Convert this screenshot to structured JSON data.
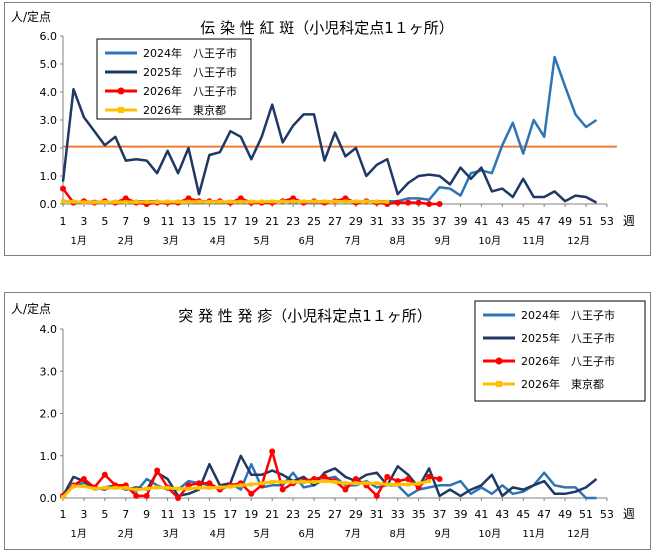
{
  "charts": [
    {
      "title": "伝 染 性 紅 斑（小児科定点1１ヶ所）",
      "ylabel": "人/定点",
      "xlabel_suffix": "週",
      "ylim": [
        0,
        6
      ],
      "yticks": [
        "0.0",
        "1.0",
        "2.0",
        "3.0",
        "4.0",
        "5.0",
        "6.0"
      ],
      "xticks": [
        "1",
        "3",
        "5",
        "7",
        "9",
        "11",
        "13",
        "15",
        "17",
        "19",
        "21",
        "23",
        "25",
        "27",
        "29",
        "31",
        "33",
        "35",
        "37",
        "39",
        "41",
        "43",
        "45",
        "47",
        "49",
        "51",
        "53"
      ],
      "months": [
        "1月",
        "2月",
        "3月",
        "4月",
        "5月",
        "6月",
        "7月",
        "8月",
        "9月",
        "10月",
        "11月",
        "12月"
      ],
      "legend": [
        {
          "label": "2024年　八王子市",
          "color": "#2e75b6"
        },
        {
          "label": "2025年　八王子市",
          "color": "#1f3864"
        },
        {
          "label": "2026年　八王子市",
          "color": "#ff0000"
        },
        {
          "label": "2026年　東京都",
          "color": "#ffc000"
        }
      ],
      "reference_line": {
        "value": 2.05,
        "color": "#ed7d31"
      }
    },
    {
      "title": "突 発 性 発 疹（小児科定点1１ヶ所）",
      "ylabel": "人/定点",
      "xlabel_suffix": "週",
      "ylim": [
        0,
        4
      ],
      "yticks": [
        "0.0",
        "1.0",
        "2.0",
        "3.0",
        "4.0"
      ],
      "xticks": [
        "1",
        "3",
        "5",
        "7",
        "9",
        "11",
        "13",
        "15",
        "17",
        "19",
        "21",
        "23",
        "25",
        "27",
        "29",
        "31",
        "33",
        "35",
        "37",
        "39",
        "41",
        "43",
        "45",
        "47",
        "49",
        "51",
        "53"
      ],
      "months": [
        "1月",
        "2月",
        "3月",
        "4月",
        "5月",
        "6月",
        "7月",
        "8月",
        "9月",
        "10月",
        "11月",
        "12月"
      ],
      "legend": [
        {
          "label": "2024年　八王子市",
          "color": "#2e75b6"
        },
        {
          "label": "2025年　八王子市",
          "color": "#1f3864"
        },
        {
          "label": "2026年　八王子市",
          "color": "#ff0000"
        },
        {
          "label": "2026年　東京都",
          "color": "#ffc000"
        }
      ]
    }
  ],
  "chart_data": [
    {
      "type": "line",
      "title": "伝 染 性 紅 斑（小児科定点1１ヶ所）",
      "ylabel": "人/定点",
      "ylim": [
        0,
        6
      ],
      "x_start": 1,
      "series": [
        {
          "name": "2024年　八王子市",
          "color": "#2e75b6",
          "values": [
            0.1,
            0.1,
            0.05,
            0.1,
            0.05,
            0.1,
            0.05,
            0.1,
            0.1,
            0.1,
            0.05,
            0.1,
            0.1,
            0.05,
            0.1,
            0.05,
            0.1,
            0.05,
            0.1,
            0.05,
            0.1,
            0.1,
            0.05,
            0.1,
            0.05,
            0.1,
            0.1,
            0.1,
            0.05,
            0.1,
            0.1,
            0.1,
            0.1,
            0.2,
            0.2,
            0.15,
            0.6,
            0.55,
            0.3,
            1.1,
            1.2,
            1.1,
            2.1,
            2.9,
            1.8,
            3.0,
            2.4,
            5.25,
            4.2,
            3.2,
            2.75,
            3.0
          ]
        },
        {
          "name": "2025年　八王子市",
          "color": "#1f3864",
          "values": [
            0.8,
            4.1,
            3.1,
            2.6,
            2.1,
            2.4,
            1.55,
            1.6,
            1.55,
            1.1,
            1.9,
            1.1,
            2.0,
            0.35,
            1.75,
            1.85,
            2.6,
            2.4,
            1.6,
            2.4,
            3.55,
            2.2,
            2.8,
            3.2,
            3.2,
            1.55,
            2.55,
            1.7,
            2.0,
            1.0,
            1.4,
            1.6,
            0.35,
            0.75,
            1.0,
            1.05,
            1.0,
            0.7,
            1.3,
            0.9,
            1.3,
            0.45,
            0.55,
            0.25,
            0.9,
            0.25,
            0.25,
            0.45,
            0.1,
            0.3,
            0.25,
            0.05
          ]
        },
        {
          "name": "2026年　八王子市",
          "color": "#ff0000",
          "values": [
            0.55,
            0.05,
            0.1,
            0.05,
            0.1,
            0.05,
            0.2,
            0.05,
            0.0,
            0.05,
            0.05,
            0.05,
            0.2,
            0.1,
            0.1,
            0.1,
            0.05,
            0.2,
            0.05,
            0.05,
            0.05,
            0.1,
            0.2,
            0.05,
            0.1,
            0.05,
            0.1,
            0.2,
            0.05,
            0.1,
            0.05,
            0.0,
            0.05,
            0.05,
            0.05,
            0.0,
            0.0
          ]
        },
        {
          "name": "2026年　東京都",
          "color": "#ffc000",
          "values": [
            0.1,
            0.08,
            0.06,
            0.06,
            0.07,
            0.07,
            0.07,
            0.07,
            0.07,
            0.07,
            0.08,
            0.08,
            0.08,
            0.08,
            0.08,
            0.08,
            0.08,
            0.08,
            0.08,
            0.08,
            0.09,
            0.09,
            0.09,
            0.09,
            0.09,
            0.09,
            0.09,
            0.09,
            0.09,
            0.09,
            0.08,
            0.08
          ]
        }
      ]
    },
    {
      "type": "line",
      "title": "突 発 性 発 疹（小児科定点1１ヶ所）",
      "ylabel": "人/定点",
      "ylim": [
        0,
        4
      ],
      "x_start": 1,
      "series": [
        {
          "name": "2024年　八王子市",
          "color": "#2e75b6",
          "values": [
            0.1,
            0.3,
            0.35,
            0.2,
            0.25,
            0.3,
            0.25,
            0.15,
            0.45,
            0.3,
            0.2,
            0.2,
            0.4,
            0.35,
            0.3,
            0.2,
            0.35,
            0.2,
            0.8,
            0.25,
            0.3,
            0.3,
            0.6,
            0.25,
            0.3,
            0.45,
            0.5,
            0.3,
            0.3,
            0.4,
            0.25,
            0.3,
            0.3,
            0.05,
            0.2,
            0.25,
            0.3,
            0.3,
            0.4,
            0.1,
            0.25,
            0.1,
            0.3,
            0.1,
            0.15,
            0.3,
            0.6,
            0.3,
            0.25,
            0.25,
            0.0,
            0.0
          ]
        },
        {
          "name": "2025年　八王子市",
          "color": "#1f3864",
          "values": [
            0.05,
            0.5,
            0.4,
            0.25,
            0.2,
            0.3,
            0.2,
            0.25,
            0.2,
            0.6,
            0.45,
            0.05,
            0.1,
            0.2,
            0.8,
            0.3,
            0.35,
            1.0,
            0.55,
            0.55,
            0.65,
            0.55,
            0.4,
            0.5,
            0.3,
            0.6,
            0.7,
            0.5,
            0.4,
            0.55,
            0.6,
            0.3,
            0.75,
            0.55,
            0.25,
            0.7,
            0.05,
            0.2,
            0.05,
            0.2,
            0.3,
            0.55,
            0.05,
            0.25,
            0.2,
            0.3,
            0.4,
            0.1,
            0.1,
            0.15,
            0.25,
            0.45
          ]
        },
        {
          "name": "2026年　八王子市",
          "color": "#ff0000",
          "values": [
            0.05,
            0.3,
            0.45,
            0.25,
            0.55,
            0.3,
            0.3,
            0.05,
            0.05,
            0.65,
            0.25,
            0.0,
            0.3,
            0.35,
            0.35,
            0.2,
            0.3,
            0.35,
            0.1,
            0.3,
            1.1,
            0.2,
            0.35,
            0.4,
            0.45,
            0.5,
            0.4,
            0.2,
            0.45,
            0.3,
            0.05,
            0.5,
            0.4,
            0.45,
            0.25,
            0.5,
            0.45
          ]
        },
        {
          "name": "2026年　東京都",
          "color": "#ffc000",
          "values": [
            0.02,
            0.28,
            0.28,
            0.22,
            0.24,
            0.24,
            0.24,
            0.2,
            0.22,
            0.25,
            0.24,
            0.22,
            0.22,
            0.24,
            0.24,
            0.25,
            0.27,
            0.3,
            0.32,
            0.35,
            0.38,
            0.38,
            0.38,
            0.38,
            0.38,
            0.4,
            0.38,
            0.35,
            0.35,
            0.35,
            0.35,
            0.32,
            0.32,
            0.32,
            0.34,
            0.4
          ]
        }
      ]
    }
  ]
}
